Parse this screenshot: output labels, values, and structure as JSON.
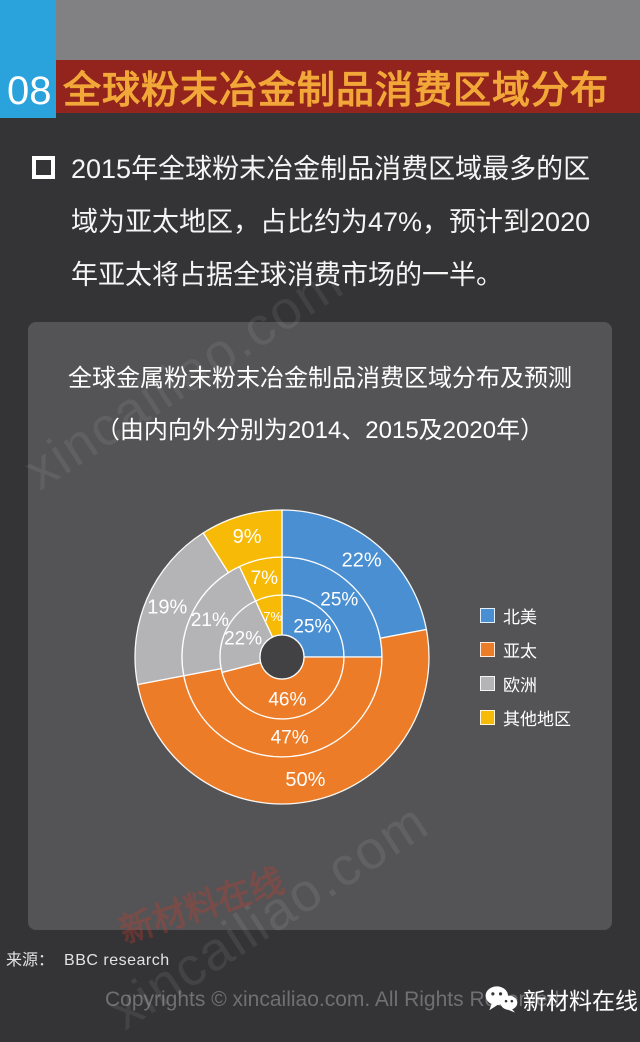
{
  "header": {
    "page_number": "08",
    "title": "全球粉末冶金制品消费区域分布"
  },
  "intro": {
    "lines": [
      "2015年全球粉末冶金制品消费区域最多的区",
      "域为亚太地区，占比约为47%，预计到2020",
      "年亚太将占据全球消费市场的一半。"
    ]
  },
  "chart_data": {
    "type": "pie",
    "subtype": "concentric-donut",
    "title": "全球金属粉末粉末冶金制品消费区域分布及预测",
    "subtitle": "（由内向外分别为2014、2015及2020年）",
    "categories": [
      "北美",
      "亚太",
      "欧洲",
      "其他地区"
    ],
    "colors": [
      "#4B8FD3",
      "#EC7C27",
      "#B4B4B6",
      "#F7BA07"
    ],
    "rings": [
      {
        "year": "2014",
        "position": "inner",
        "values": [
          25,
          46,
          22,
          7
        ]
      },
      {
        "year": "2015",
        "position": "middle",
        "values": [
          25,
          47,
          21,
          7
        ]
      },
      {
        "year": "2020",
        "position": "outer",
        "values": [
          22,
          50,
          19,
          9
        ]
      }
    ],
    "unit": "%",
    "label_format": "percent",
    "legend_position": "right",
    "start_angle_deg": 0,
    "direction": "clockwise"
  },
  "source": {
    "label": "来源：",
    "value": "BBC research"
  },
  "footer": {
    "copyright": "Copyrights © xincailiao.com. All Rights Reserved",
    "brand": "新材料在线"
  },
  "watermark": {
    "text": "xincailiao.com",
    "stamp": "新材料在线"
  },
  "colors": {
    "page_bg": "#343436",
    "band": "#818082",
    "banner_bg": "#93231D",
    "banner_text": "#F2A838",
    "badge_bg": "#2AA2DC",
    "card_bg": "#545456",
    "body_text": "#F5F5F5",
    "muted_text": "#707073"
  }
}
